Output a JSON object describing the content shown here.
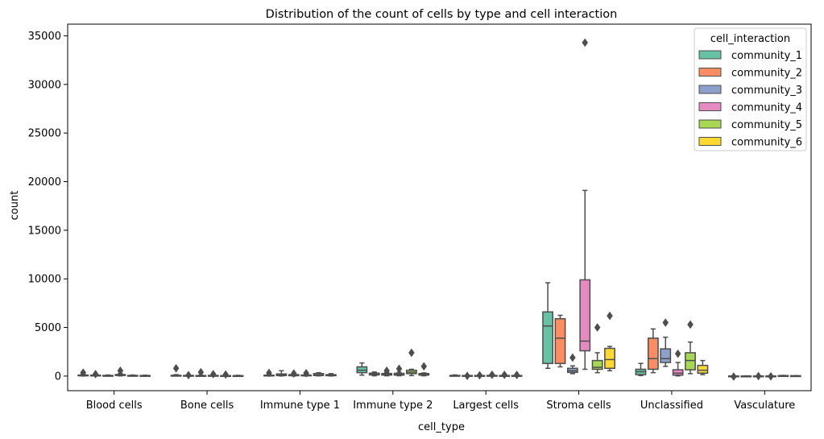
{
  "chart_data": {
    "type": "boxplot",
    "title": "Distribution of the count of cells by type and cell interaction",
    "xlabel": "cell_type",
    "ylabel": "count",
    "ylim": [
      -1500,
      36200
    ],
    "yticks": [
      0,
      5000,
      10000,
      15000,
      20000,
      25000,
      30000,
      35000
    ],
    "ytick_labels": [
      "0",
      "5000",
      "10000",
      "15000",
      "20000",
      "25000",
      "30000",
      "35000"
    ],
    "categories": [
      "Blood cells",
      "Bone cells",
      "Immune type 1",
      "Immune type 2",
      "Largest cells",
      "Stroma cells",
      "Unclassified",
      "Vasculature"
    ],
    "legend": {
      "title": "cell_interaction",
      "placement": "upper right"
    },
    "grid": false,
    "series": [
      {
        "name": "community_1",
        "color": "#66c2a5",
        "boxes": [
          {
            "q1": 40,
            "median": 70,
            "q3": 110,
            "whislo": 10,
            "whishi": 200,
            "fliers": [
              350
            ]
          },
          {
            "q1": 30,
            "median": 50,
            "q3": 80,
            "whislo": 5,
            "whishi": 150,
            "fliers": [
              800
            ]
          },
          {
            "q1": 30,
            "median": 60,
            "q3": 100,
            "whislo": 10,
            "whishi": 180,
            "fliers": [
              330
            ]
          },
          {
            "q1": 350,
            "median": 600,
            "q3": 950,
            "whislo": 100,
            "whishi": 1350,
            "fliers": []
          },
          {
            "q1": 20,
            "median": 40,
            "q3": 70,
            "whislo": 5,
            "whishi": 120,
            "fliers": []
          },
          {
            "q1": 1300,
            "median": 5150,
            "q3": 6600,
            "whislo": 800,
            "whishi": 9600,
            "fliers": []
          },
          {
            "q1": 150,
            "median": 450,
            "q3": 700,
            "whislo": 50,
            "whishi": 1300,
            "fliers": []
          },
          {
            "q1": -20,
            "median": -5,
            "q3": 10,
            "whislo": -40,
            "whishi": 20,
            "fliers": [
              -50
            ]
          }
        ]
      },
      {
        "name": "community_2",
        "color": "#fc8d62",
        "boxes": [
          {
            "q1": 40,
            "median": 60,
            "q3": 100,
            "whislo": 10,
            "whishi": 180,
            "fliers": [
              200
            ]
          },
          {
            "q1": 20,
            "median": 40,
            "q3": 70,
            "whislo": 5,
            "whishi": 120,
            "fliers": [
              100
            ]
          },
          {
            "q1": 50,
            "median": 100,
            "q3": 220,
            "whislo": 10,
            "whishi": 550,
            "fliers": []
          },
          {
            "q1": 120,
            "median": 200,
            "q3": 300,
            "whislo": 30,
            "whishi": 420,
            "fliers": []
          },
          {
            "q1": 15,
            "median": 30,
            "q3": 60,
            "whislo": 5,
            "whishi": 100,
            "fliers": [
              20
            ]
          },
          {
            "q1": 1300,
            "median": 3900,
            "q3": 5900,
            "whislo": 950,
            "whishi": 6250,
            "fliers": []
          },
          {
            "q1": 700,
            "median": 1800,
            "q3": 3900,
            "whislo": 350,
            "whishi": 4850,
            "fliers": []
          },
          {
            "q1": -10,
            "median": 0,
            "q3": 10,
            "whislo": -30,
            "whishi": 25,
            "fliers": []
          }
        ]
      },
      {
        "name": "community_3",
        "color": "#8da0cb",
        "boxes": [
          {
            "q1": 20,
            "median": 40,
            "q3": 70,
            "whislo": 5,
            "whishi": 110,
            "fliers": []
          },
          {
            "q1": 20,
            "median": 40,
            "q3": 60,
            "whislo": 5,
            "whishi": 100,
            "fliers": [
              400
            ]
          },
          {
            "q1": 40,
            "median": 80,
            "q3": 150,
            "whislo": 10,
            "whishi": 250,
            "fliers": [
              270
            ]
          },
          {
            "q1": 100,
            "median": 180,
            "q3": 270,
            "whislo": 30,
            "whishi": 350,
            "fliers": [
              550
            ]
          },
          {
            "q1": 20,
            "median": 40,
            "q3": 60,
            "whislo": 5,
            "whishi": 100,
            "fliers": [
              80
            ]
          },
          {
            "q1": 380,
            "median": 550,
            "q3": 800,
            "whislo": 250,
            "whishi": 1050,
            "fliers": [
              1900
            ]
          },
          {
            "q1": 1400,
            "median": 1800,
            "q3": 2800,
            "whislo": 1000,
            "whishi": 4000,
            "fliers": [
              5500
            ]
          },
          {
            "q1": -5,
            "median": 5,
            "q3": 15,
            "whislo": -20,
            "whishi": 25,
            "fliers": [
              0
            ]
          }
        ]
      },
      {
        "name": "community_4",
        "color": "#e78ac3",
        "boxes": [
          {
            "q1": 60,
            "median": 100,
            "q3": 160,
            "whislo": 20,
            "whishi": 260,
            "fliers": [
              550
            ]
          },
          {
            "q1": 20,
            "median": 40,
            "q3": 70,
            "whislo": 5,
            "whishi": 110,
            "fliers": [
              200
            ]
          },
          {
            "q1": 30,
            "median": 60,
            "q3": 110,
            "whislo": 10,
            "whishi": 200,
            "fliers": [
              300
            ]
          },
          {
            "q1": 100,
            "median": 170,
            "q3": 280,
            "whislo": 30,
            "whishi": 400,
            "fliers": [
              750
            ]
          },
          {
            "q1": 20,
            "median": 40,
            "q3": 70,
            "whislo": 5,
            "whishi": 110,
            "fliers": [
              140
            ]
          },
          {
            "q1": 2600,
            "median": 3600,
            "q3": 9900,
            "whislo": 700,
            "whishi": 19100,
            "fliers": [
              34300
            ]
          },
          {
            "q1": 100,
            "median": 300,
            "q3": 650,
            "whislo": 20,
            "whishi": 1400,
            "fliers": [
              2300
            ]
          },
          {
            "q1": -5,
            "median": 5,
            "q3": 15,
            "whislo": -20,
            "whishi": 25,
            "fliers": [
              -30
            ]
          }
        ]
      },
      {
        "name": "community_5",
        "color": "#a6d854",
        "boxes": [
          {
            "q1": 20,
            "median": 40,
            "q3": 70,
            "whislo": 5,
            "whishi": 110,
            "fliers": []
          },
          {
            "q1": 20,
            "median": 30,
            "q3": 50,
            "whislo": 5,
            "whishi": 90,
            "fliers": [
              160
            ]
          },
          {
            "q1": 60,
            "median": 120,
            "q3": 260,
            "whislo": 20,
            "whishi": 350,
            "fliers": []
          },
          {
            "q1": 250,
            "median": 400,
            "q3": 600,
            "whislo": 50,
            "whishi": 700,
            "fliers": [
              2400
            ]
          },
          {
            "q1": 20,
            "median": 40,
            "q3": 60,
            "whislo": 5,
            "whishi": 100,
            "fliers": [
              130
            ]
          },
          {
            "q1": 700,
            "median": 900,
            "q3": 1600,
            "whislo": 350,
            "whishi": 2400,
            "fliers": [
              5000
            ]
          },
          {
            "q1": 650,
            "median": 1600,
            "q3": 2400,
            "whislo": 250,
            "whishi": 3500,
            "fliers": [
              5300
            ]
          },
          {
            "q1": 10,
            "median": 30,
            "q3": 50,
            "whislo": 0,
            "whishi": 70,
            "fliers": []
          }
        ]
      },
      {
        "name": "community_6",
        "color": "#ffd92f",
        "boxes": [
          {
            "q1": 20,
            "median": 40,
            "q3": 60,
            "whislo": 5,
            "whishi": 90,
            "fliers": []
          },
          {
            "q1": 20,
            "median": 30,
            "q3": 50,
            "whislo": 5,
            "whishi": 80,
            "fliers": []
          },
          {
            "q1": 40,
            "median": 80,
            "q3": 150,
            "whislo": 10,
            "whishi": 250,
            "fliers": []
          },
          {
            "q1": 100,
            "median": 170,
            "q3": 260,
            "whislo": 30,
            "whishi": 330,
            "fliers": [
              1000
            ]
          },
          {
            "q1": 20,
            "median": 40,
            "q3": 60,
            "whislo": 5,
            "whishi": 100,
            "fliers": [
              120
            ]
          },
          {
            "q1": 800,
            "median": 1700,
            "q3": 2850,
            "whislo": 550,
            "whishi": 3050,
            "fliers": [
              6200
            ]
          },
          {
            "q1": 300,
            "median": 600,
            "q3": 1100,
            "whislo": 150,
            "whishi": 1600,
            "fliers": []
          },
          {
            "q1": 10,
            "median": 20,
            "q3": 40,
            "whislo": 0,
            "whishi": 50,
            "fliers": []
          }
        ]
      }
    ]
  }
}
